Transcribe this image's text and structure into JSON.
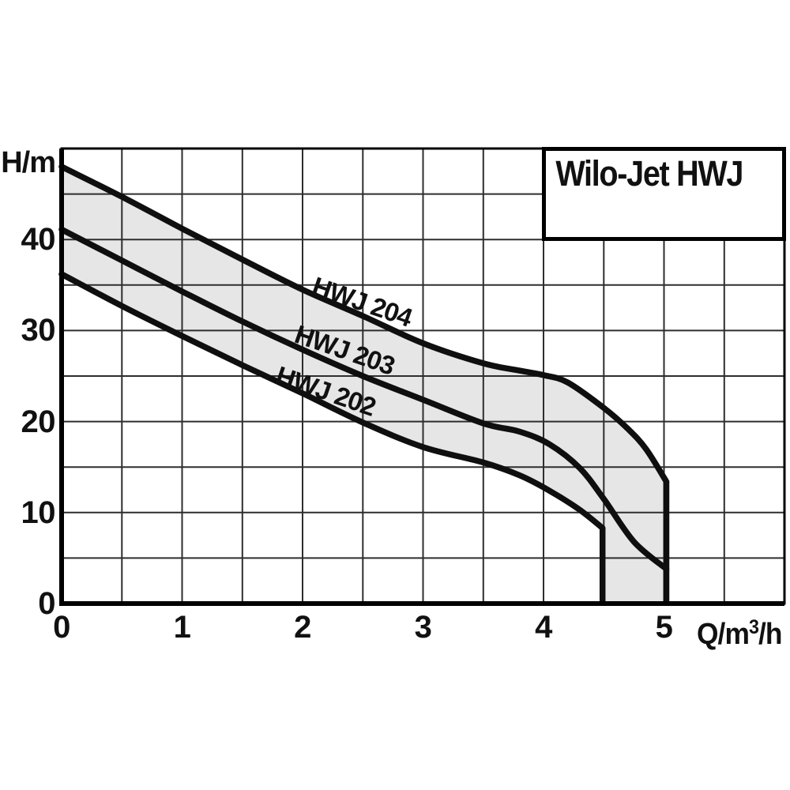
{
  "title_box": {
    "label": "Wilo-Jet HWJ"
  },
  "axes": {
    "y_unit": "H/m",
    "x_unit_base": "Q/m",
    "x_unit_sup": "3",
    "x_unit_rest": "/h",
    "x_tick_values": [
      0,
      1,
      2,
      3,
      4,
      5
    ],
    "y_tick_values": [
      0,
      10,
      20,
      30,
      40
    ]
  },
  "chart_data": {
    "type": "line",
    "title": "Wilo-Jet HWJ",
    "xlabel": "Q/m³/h",
    "ylabel": "H/m",
    "xlim": [
      0,
      6
    ],
    "ylim": [
      0,
      50
    ],
    "grid": true,
    "x_grid_step": 0.5,
    "y_grid_step": 5,
    "x_ticks_labeled": [
      0,
      1,
      2,
      3,
      4,
      5
    ],
    "y_ticks_labeled": [
      0,
      10,
      20,
      30,
      40
    ],
    "curve_color": "#0f0f0f",
    "band": {
      "between": [
        "HWJ 204",
        "HWJ 202"
      ],
      "fill": "#e6e6e6",
      "right_edge_q": 5.02,
      "lower_drop_q": 4.49
    },
    "series": [
      {
        "name": "HWJ 204",
        "x": [
          0,
          0.5,
          1,
          1.5,
          2,
          2.5,
          3,
          3.5,
          3.8,
          4,
          4.2,
          4.5,
          4.7,
          4.85,
          5.02
        ],
        "y": [
          48,
          44.7,
          41.2,
          37.8,
          34.5,
          31.6,
          28.6,
          26.4,
          25.6,
          25.1,
          24.3,
          21.5,
          19.2,
          17,
          13.4
        ],
        "drop_to_zero_at_end": true
      },
      {
        "name": "HWJ 203",
        "x": [
          0,
          0.5,
          1,
          1.5,
          2,
          2.5,
          3,
          3.5,
          3.8,
          4.05,
          4.3,
          4.5,
          4.75,
          5.02
        ],
        "y": [
          41.1,
          37.7,
          34.3,
          31,
          27.9,
          25,
          22.4,
          19.8,
          18.9,
          17.5,
          14.9,
          11.5,
          6.8,
          3.8
        ],
        "drop_to_zero_at_end": false
      },
      {
        "name": "HWJ 202",
        "x": [
          0,
          0.5,
          1,
          1.5,
          2,
          2.5,
          3,
          3.5,
          3.8,
          4.05,
          4.3,
          4.49
        ],
        "y": [
          36.2,
          32.7,
          29.4,
          26.2,
          23.1,
          19.9,
          17.2,
          15.5,
          14.1,
          12.4,
          10.3,
          8.3
        ],
        "drop_to_zero_at_end": true
      }
    ]
  }
}
